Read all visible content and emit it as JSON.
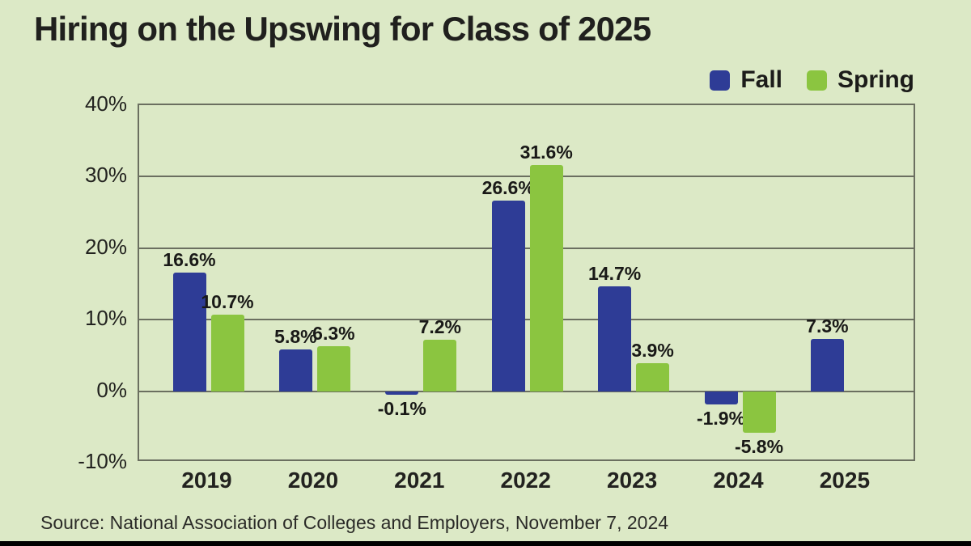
{
  "title": "Hiring on the Upswing for Class of 2025",
  "source": "Source: National Association of Colleges and Employers, November 7, 2024",
  "colors": {
    "background": "#dce9c6",
    "fall_bar": "#2e3c96",
    "spring_bar": "#8bc540",
    "grid_line": "#6b6f60",
    "text": "#20201e",
    "letterbox": "#000000"
  },
  "chart_data": {
    "type": "bar",
    "title": "Hiring on the Upswing for Class of 2025",
    "categories": [
      "2019",
      "2020",
      "2021",
      "2022",
      "2023",
      "2024",
      "2025"
    ],
    "series": [
      {
        "name": "Fall",
        "color": "#2e3c96",
        "values": [
          16.6,
          5.8,
          -0.1,
          26.6,
          14.7,
          -1.9,
          7.3
        ]
      },
      {
        "name": "Spring",
        "color": "#8bc540",
        "values": [
          10.7,
          6.3,
          7.2,
          31.6,
          3.9,
          -5.8,
          null
        ]
      }
    ],
    "value_labels": [
      [
        "16.6%",
        "5.8%",
        "-0.1%",
        "26.6%",
        "14.7%",
        "-1.9%",
        "7.3%"
      ],
      [
        "10.7%",
        "6.3%",
        "7.2%",
        "31.6%",
        "3.9%",
        "-5.8%",
        null
      ]
    ],
    "y_ticks": [
      {
        "value": 40,
        "label": "40%"
      },
      {
        "value": 30,
        "label": "30%"
      },
      {
        "value": 20,
        "label": "20%"
      },
      {
        "value": 10,
        "label": "10%"
      },
      {
        "value": 0,
        "label": "0%"
      },
      {
        "value": -10,
        "label": "-10%"
      }
    ],
    "ylim": [
      -10,
      40
    ],
    "grid": true,
    "legend_position": "top-right",
    "xlabel": "",
    "ylabel": ""
  }
}
